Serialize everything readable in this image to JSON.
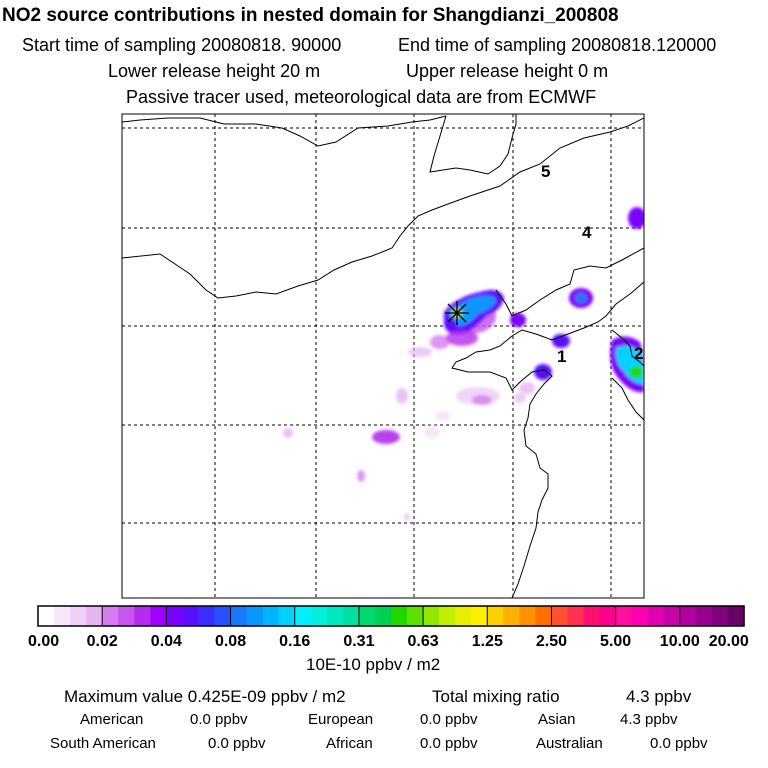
{
  "header": {
    "title": "NO2 source contributions in nested domain for Shangdianzi_200808",
    "start_time": "Start time of sampling 20080818. 90000",
    "end_time": "End time of sampling 20080818.120000",
    "lower_release": "Lower release height   20 m",
    "upper_release": "Upper release height    0 m",
    "note": "Passive tracer used, meteorological data are from ECMWF"
  },
  "map": {
    "region_labels": [
      "5",
      "4",
      "1",
      "2"
    ],
    "receptor_marker": "star-crosshair"
  },
  "chart_data": {
    "type": "heatmap",
    "title": "NO2 source contributions in nested domain for Shangdianzi_200808",
    "colorbar": {
      "tick_labels": [
        "0.00",
        "0.02",
        "0.04",
        "0.08",
        "0.16",
        "0.31",
        "0.63",
        "1.25",
        "2.50",
        "5.00",
        "10.00",
        "20.00"
      ],
      "unit_label": "10E-10 ppbv / m2",
      "colors": [
        "#ffffff",
        "#f6e6fa",
        "#eed0f6",
        "#e6b4f3",
        "#d77cf0",
        "#c855ee",
        "#b42cec",
        "#a000ff",
        "#7a00ff",
        "#5a10ff",
        "#3b30ff",
        "#2a50ff",
        "#1a78ff",
        "#0a96ff",
        "#00b4ff",
        "#00d2ff",
        "#00f0ff",
        "#00f0e0",
        "#00e8c0",
        "#00e0a0",
        "#00d870",
        "#00d050",
        "#20d800",
        "#60e000",
        "#90e800",
        "#c0f000",
        "#e8f000",
        "#fff000",
        "#ffd000",
        "#ffb000",
        "#ff9000",
        "#ff7000",
        "#ff5030",
        "#ff3050",
        "#ff1070",
        "#ff0090",
        "#ff10a0",
        "#ff00b4",
        "#e000b0",
        "#c800a8",
        "#b000a0",
        "#980090",
        "#800080",
        "#680068"
      ]
    }
  },
  "summary": {
    "max_value": "Maximum value  0.425E-09 ppbv / m2",
    "total_label": "Total mixing ratio",
    "total_value": "4.3 ppbv",
    "regions": [
      {
        "name": "American",
        "value": "0.0 ppbv"
      },
      {
        "name": "European",
        "value": "0.0 ppbv"
      },
      {
        "name": "Asian",
        "value": "4.3 ppbv"
      },
      {
        "name": "South American",
        "value": "0.0 ppbv"
      },
      {
        "name": "African",
        "value": "0.0 ppbv"
      },
      {
        "name": "Australian",
        "value": "0.0 ppbv"
      }
    ]
  }
}
